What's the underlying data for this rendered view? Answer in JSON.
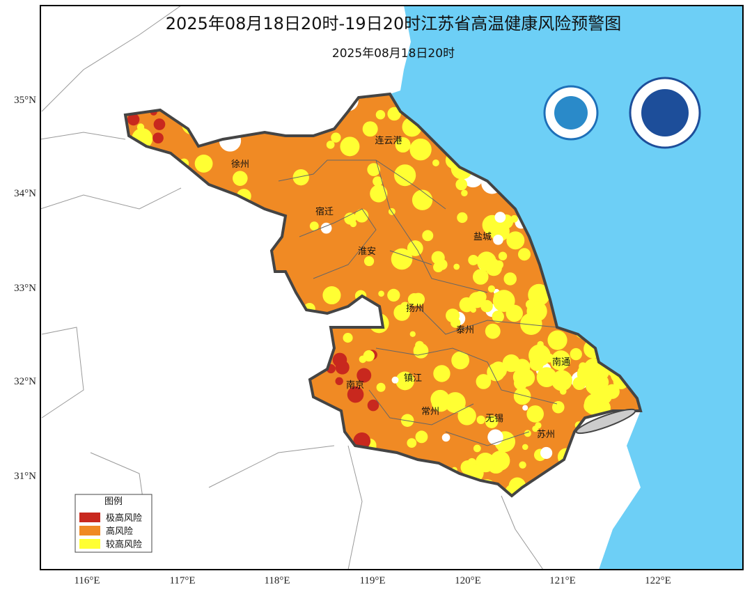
{
  "title": "2025年08月18日20时-19日20时江苏省高温健康风险预警图",
  "subtitle": "2025年08月18日20时",
  "map": {
    "longitude_labels": [
      "116°E",
      "117°E",
      "118°E",
      "119°E",
      "120°E",
      "121°E",
      "122°E"
    ],
    "latitude_labels": [
      "35°N",
      "34°N",
      "33°N",
      "32°N",
      "31°N"
    ],
    "cities": [
      "徐州",
      "连云港",
      "宿迁",
      "淮安",
      "盐城",
      "扬州",
      "泰州",
      "南通",
      "南京",
      "镇江",
      "常州",
      "无锡",
      "苏州"
    ]
  },
  "legend": {
    "title": "图例",
    "items": [
      "极高风险",
      "高风险",
      "较高风险"
    ]
  }
}
